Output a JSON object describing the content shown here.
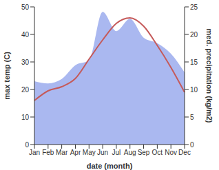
{
  "chart_data": {
    "type": "line",
    "categories": [
      "Jan",
      "Feb",
      "Mar",
      "Apr",
      "May",
      "Jun",
      "Jul",
      "Aug",
      "Sep",
      "Oct",
      "Nov",
      "Dec"
    ],
    "xlabel": "date (month)",
    "ylabel": "max temp (C)",
    "y2label": "med. precipitation (kg/m2)",
    "ylim": [
      0,
      50
    ],
    "yticks": [
      0,
      10,
      20,
      30,
      40,
      50
    ],
    "y2lim": [
      0,
      25
    ],
    "y2ticks": [
      0,
      5,
      10,
      15,
      20,
      25
    ],
    "grid": false,
    "series": [
      {
        "name": "med. precipitation (kg/m2)",
        "type": "area",
        "axis": "y2",
        "color": "#aab8f0",
        "values": [
          11.5,
          11.1,
          11.9,
          14.4,
          15.3,
          24.1,
          20.6,
          22.8,
          19.4,
          18.4,
          16.5,
          13.1
        ]
      },
      {
        "name": "max temp (C)",
        "type": "line",
        "axis": "y",
        "color": "#c55a5a",
        "values": [
          16,
          19.5,
          21,
          24,
          31,
          38,
          44,
          46,
          43,
          36,
          28,
          19
        ]
      }
    ]
  }
}
